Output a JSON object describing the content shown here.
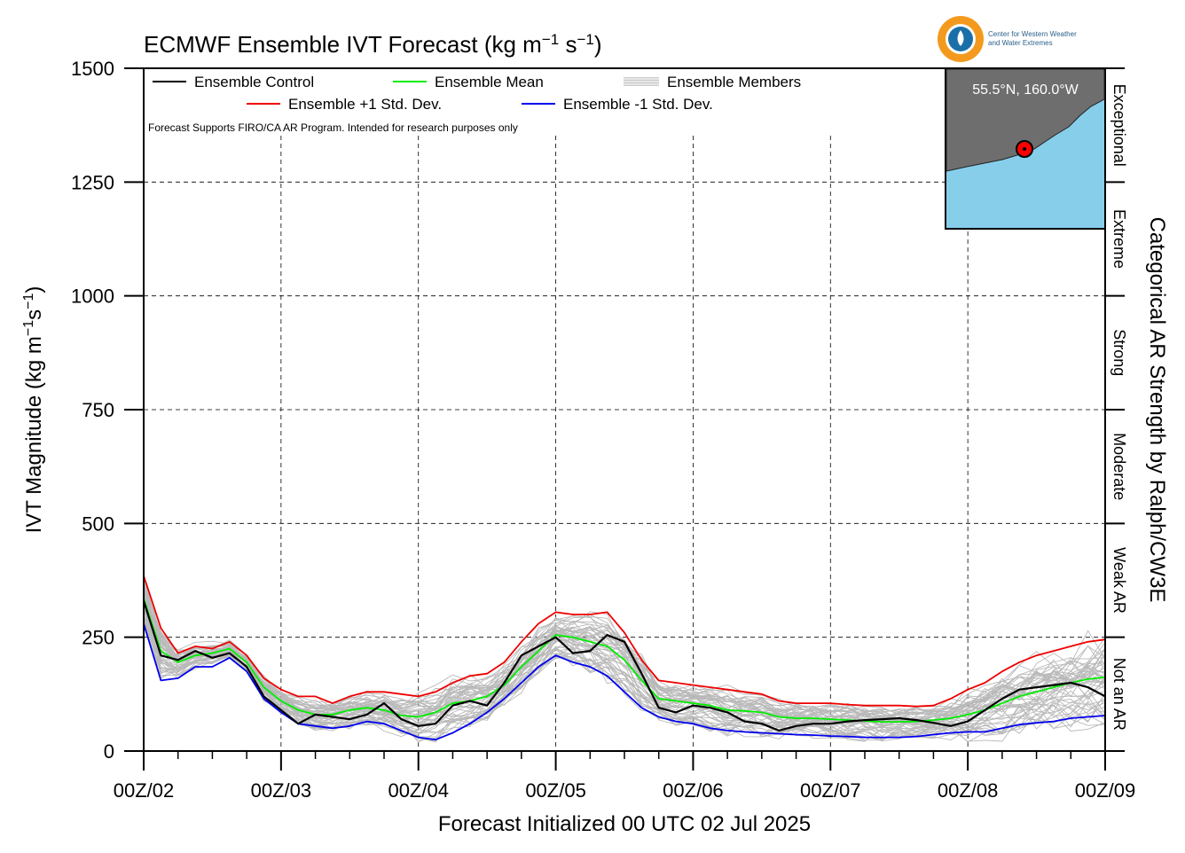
{
  "chart_data": {
    "type": "line",
    "title": "ECMWF Ensemble IVT Forecast (kg m",
    "title_sup1": "−1",
    "title_mid": " s",
    "title_sup2": "−1",
    "title_end": ")",
    "xlabel": "Forecast Initialized 00 UTC 02 Jul 2025",
    "ylabel": {
      "main": "IVT Magnitude (kg m",
      "sup1": "−1",
      "mid": "s",
      "sup2": "−1",
      "end": ")"
    },
    "right_axis_title": "Categorical AR Strength by Ralph/CW3E",
    "note": "Forecast Supports FIRO/CA AR Program. Intended for research purposes only",
    "logo_text": [
      "Center for Western Weather",
      "and Water Extremes"
    ],
    "inset_label": "55.5°N, 160.0°W",
    "ylim": [
      0,
      1500
    ],
    "yticks": [
      0,
      250,
      500,
      750,
      1000,
      1250,
      1500
    ],
    "xlim": [
      0,
      168
    ],
    "xticks": [
      {
        "x": 0,
        "label": "00Z/02"
      },
      {
        "x": 24,
        "label": "00Z/03"
      },
      {
        "x": 48,
        "label": "00Z/04"
      },
      {
        "x": 72,
        "label": "00Z/05"
      },
      {
        "x": 96,
        "label": "00Z/06"
      },
      {
        "x": 120,
        "label": "00Z/07"
      },
      {
        "x": 144,
        "label": "00Z/08"
      },
      {
        "x": 168,
        "label": "00Z/09"
      }
    ],
    "grid": true,
    "categories": [
      {
        "label": "Not an AR",
        "range": [
          0,
          250
        ]
      },
      {
        "label": "Weak AR",
        "range": [
          250,
          500
        ]
      },
      {
        "label": "Moderate",
        "range": [
          500,
          750
        ]
      },
      {
        "label": "Strong",
        "range": [
          750,
          1000
        ]
      },
      {
        "label": "Extreme",
        "range": [
          1000,
          1250
        ]
      },
      {
        "label": "Exceptional",
        "range": [
          1250,
          1500
        ]
      }
    ],
    "legend": [
      {
        "label": "Ensemble Control",
        "color": "#000000"
      },
      {
        "label": "Ensemble Mean",
        "color": "#00ee00"
      },
      {
        "label": "Ensemble Members",
        "color": "#bbbbbb"
      },
      {
        "label": "Ensemble +1 Std. Dev.",
        "color": "#ee0000"
      },
      {
        "label": "Ensemble -1 Std. Dev.",
        "color": "#0000ee"
      }
    ],
    "x": [
      0,
      3,
      6,
      9,
      12,
      15,
      18,
      21,
      24,
      27,
      30,
      33,
      36,
      39,
      42,
      45,
      48,
      51,
      54,
      57,
      60,
      63,
      66,
      69,
      72,
      75,
      78,
      81,
      84,
      87,
      90,
      93,
      96,
      99,
      102,
      105,
      108,
      111,
      114,
      117,
      120,
      123,
      126,
      129,
      132,
      135,
      138,
      141,
      144,
      147,
      150,
      153,
      156,
      159,
      162,
      165,
      168
    ],
    "series": [
      {
        "name": "Ensemble Control",
        "color": "#000000",
        "values": [
          330,
          210,
          200,
          220,
          205,
          215,
          185,
          120,
          90,
          60,
          80,
          75,
          70,
          80,
          105,
          70,
          55,
          60,
          100,
          110,
          100,
          150,
          210,
          230,
          250,
          215,
          220,
          255,
          240,
          170,
          95,
          85,
          100,
          95,
          85,
          65,
          60,
          45,
          55,
          60,
          60,
          65,
          68,
          70,
          72,
          68,
          62,
          55,
          65,
          90,
          115,
          135,
          140,
          145,
          150,
          140,
          120
        ]
      },
      {
        "name": "Ensemble Mean",
        "color": "#00ee00",
        "values": [
          335,
          220,
          195,
          210,
          215,
          225,
          195,
          140,
          110,
          90,
          80,
          80,
          90,
          95,
          90,
          78,
          75,
          85,
          105,
          110,
          120,
          145,
          185,
          220,
          255,
          250,
          240,
          230,
          200,
          155,
          115,
          110,
          105,
          100,
          90,
          88,
          85,
          75,
          72,
          72,
          70,
          68,
          66,
          64,
          64,
          65,
          68,
          72,
          80,
          90,
          105,
          120,
          130,
          140,
          150,
          158,
          162
        ]
      },
      {
        "name": "Ensemble +1 Std. Dev.",
        "color": "#ee0000",
        "values": [
          385,
          270,
          215,
          230,
          225,
          240,
          210,
          160,
          135,
          120,
          120,
          105,
          120,
          130,
          130,
          125,
          120,
          130,
          150,
          165,
          170,
          195,
          240,
          280,
          305,
          300,
          300,
          305,
          260,
          200,
          155,
          150,
          145,
          140,
          135,
          130,
          125,
          110,
          105,
          105,
          105,
          102,
          100,
          100,
          100,
          98,
          100,
          115,
          135,
          150,
          175,
          195,
          210,
          220,
          230,
          240,
          245
        ]
      },
      {
        "name": "Ensemble -1 Std. Dev.",
        "color": "#0000ee",
        "values": [
          280,
          155,
          160,
          185,
          185,
          205,
          175,
          115,
          85,
          60,
          55,
          50,
          55,
          65,
          60,
          45,
          30,
          25,
          40,
          60,
          85,
          115,
          150,
          185,
          210,
          195,
          185,
          165,
          130,
          95,
          75,
          65,
          60,
          50,
          45,
          42,
          40,
          38,
          36,
          35,
          33,
          32,
          30,
          30,
          30,
          32,
          36,
          40,
          42,
          42,
          50,
          58,
          62,
          65,
          72,
          75,
          78
        ]
      }
    ]
  }
}
